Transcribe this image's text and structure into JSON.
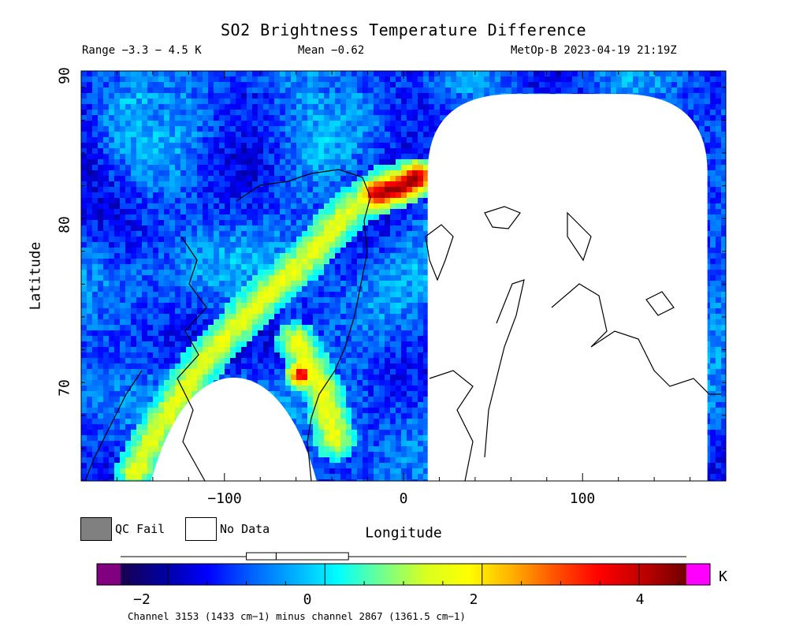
{
  "title": "SO2 Brightness Temperature Difference",
  "range_text": "Range −3.3 − 4.5 K",
  "mean_text": "Mean −0.62",
  "satellite_text": "MetOp-B 2023-04-19 21:19Z",
  "legend": {
    "qc_fail": "QC Fail",
    "no_data": "No Data",
    "qc_fail_color": "#808080",
    "no_data_color": "#ffffff"
  },
  "colorbar": {
    "unit": "K",
    "min": -2.6,
    "max": 4.6,
    "ticks": [
      -2,
      0,
      2,
      4
    ],
    "tick_labels": [
      "−2",
      "0",
      "2",
      "4"
    ],
    "under_color": "#800080",
    "over_color": "#ff00ff",
    "stops": [
      "#180050",
      "#0000a0",
      "#0000ff",
      "#0060ff",
      "#00b0ff",
      "#00ffff",
      "#70ff90",
      "#d8ff20",
      "#ffff00",
      "#ffb000",
      "#ff5000",
      "#ff0000",
      "#c00000",
      "#700000"
    ],
    "box_plot": {
      "low": -1.0,
      "q1": -0.62,
      "median": -0.62,
      "q3": 0.3,
      "whisker_min": -2.6,
      "whisker_max": 4.6
    }
  },
  "caption": "Channel 3153 (1433 cm−1) minus channel 2867 (1361.5 cm−1)",
  "chart_data": {
    "type": "heatmap",
    "title": "SO2 Brightness Temperature Difference",
    "xlabel": "Longitude",
    "ylabel": "Latitude",
    "xlim": [
      -180,
      180
    ],
    "ylim": [
      65,
      90
    ],
    "xticks": [
      -100,
      0,
      100
    ],
    "xtick_labels": [
      "−100",
      "0",
      "100"
    ],
    "yticks": [
      70,
      80,
      90
    ],
    "ytick_labels": [
      "70",
      "80",
      "90"
    ],
    "value_range": [
      -3.3,
      4.5
    ],
    "mean": -0.62,
    "units": "K",
    "background_value": -1.0,
    "features": [
      {
        "name": "warm arc",
        "points": [
          [
            -150,
            65.5
          ],
          [
            -135,
            68.5
          ],
          [
            -110,
            72.5
          ],
          [
            -80,
            76
          ],
          [
            -55,
            78.5
          ],
          [
            -30,
            81.5
          ],
          [
            -10,
            83
          ],
          [
            8,
            83.5
          ]
        ],
        "value": 1.5
      },
      {
        "name": "warm arc peak",
        "points": [
          [
            -15,
            82.5
          ],
          [
            0,
            83
          ],
          [
            8,
            83.5
          ]
        ],
        "value": 4.2
      },
      {
        "name": "hotspot",
        "points": [
          [
            -57,
            71.5
          ]
        ],
        "value": 3.8
      },
      {
        "name": "southern band",
        "points": [
          [
            -60,
            73.5
          ],
          [
            -45,
            70.5
          ],
          [
            -38,
            67.5
          ]
        ],
        "value": 1.6
      }
    ],
    "no_data_regions": [
      {
        "name": "swath gap east",
        "lon": [
          10,
          175
        ],
        "lat": [
          65,
          88.6
        ]
      },
      {
        "name": "swath gap south",
        "center_lon": -100,
        "lat_top": 71.3
      }
    ]
  }
}
